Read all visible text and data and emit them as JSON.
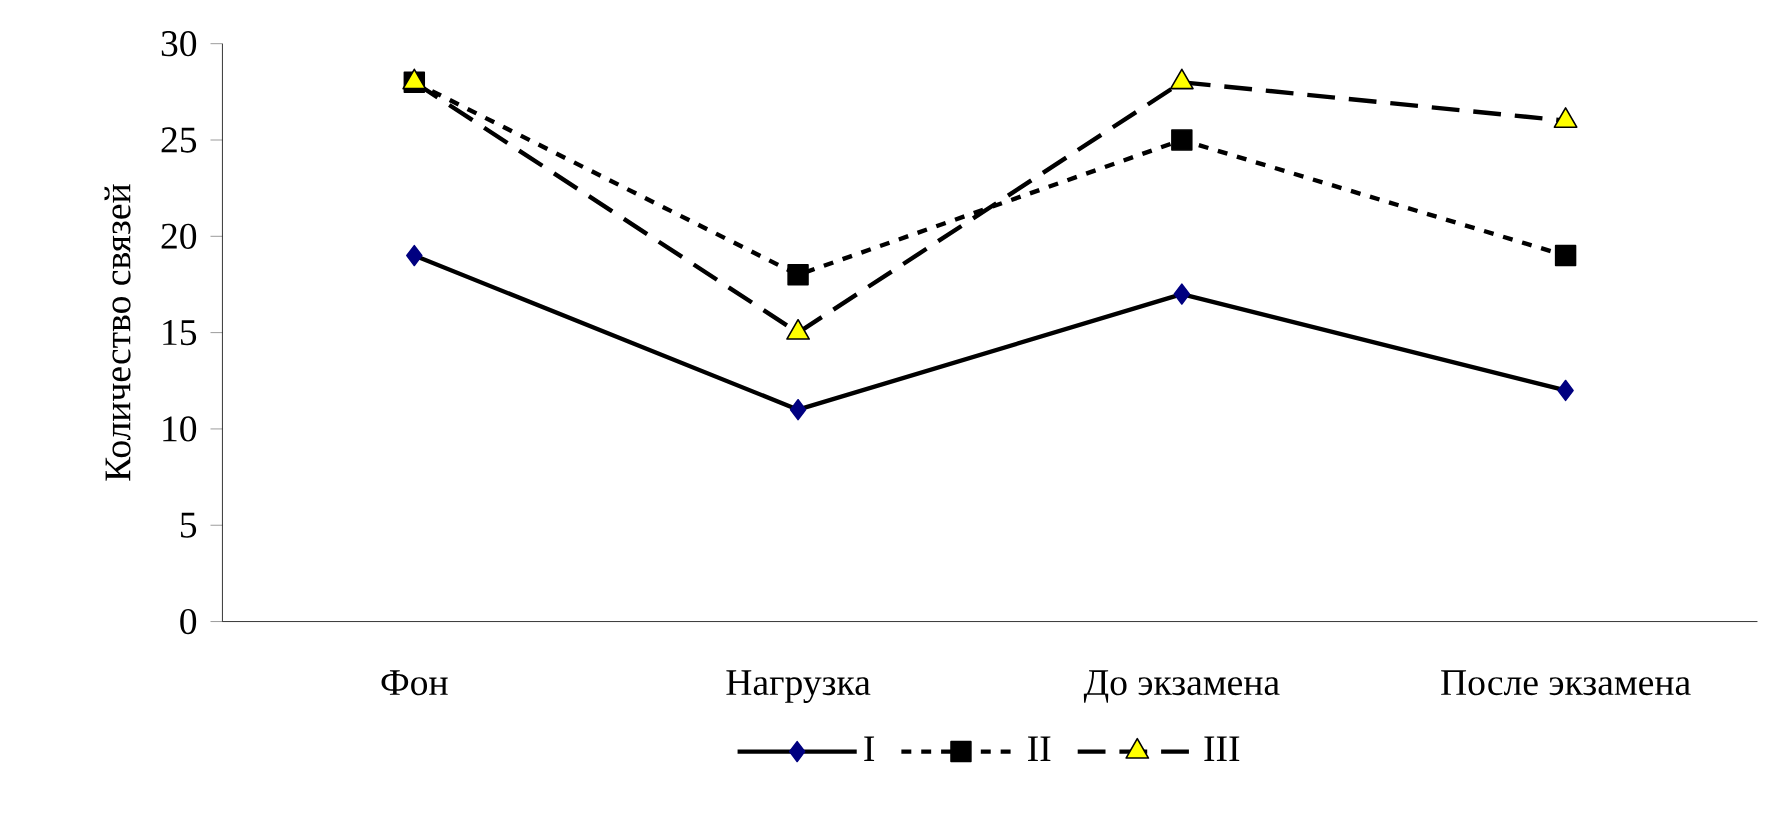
{
  "chart_data": {
    "type": "line",
    "ylabel": "Количество связей",
    "categories": [
      "Фон",
      "Нагрузка",
      "До экзамена",
      "После экзамена"
    ],
    "series": [
      {
        "name": "I",
        "color": "#000080",
        "values": [
          19,
          11,
          17,
          12
        ],
        "marker": "diamond",
        "line_style": "solid"
      },
      {
        "name": "II",
        "color": "#000000",
        "values": [
          28,
          18,
          25,
          19
        ],
        "marker": "square",
        "line_style": "dotted"
      },
      {
        "name": "III",
        "color": "#ffff00",
        "values": [
          28,
          15,
          28,
          26
        ],
        "marker": "triangle",
        "line_style": "dashed"
      }
    ],
    "ylim": [
      0,
      30
    ],
    "yticks": [
      0,
      5,
      10,
      15,
      20,
      25,
      30
    ],
    "grid": false,
    "legend": "bottom"
  }
}
